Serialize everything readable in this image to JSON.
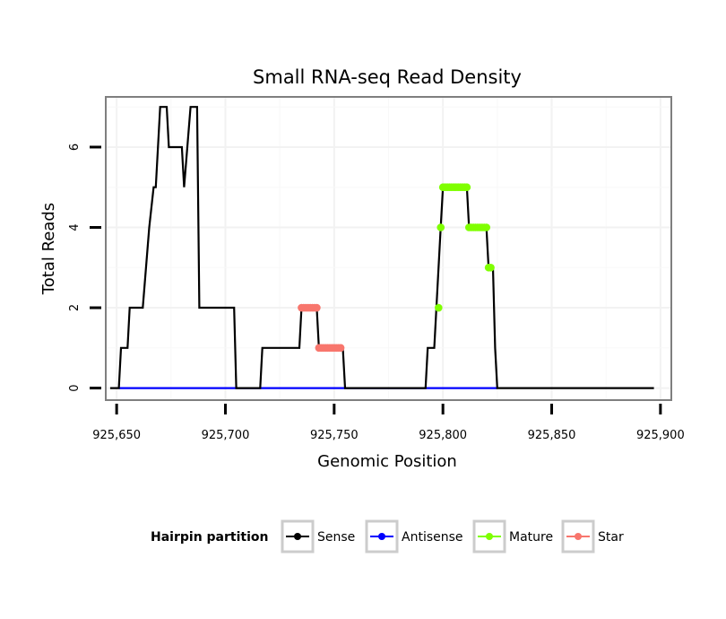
{
  "chart_data": {
    "type": "line",
    "title": "Small RNA-seq Read Density",
    "xlabel": "Genomic Position",
    "ylabel": "Total Reads",
    "xlim": [
      925645,
      925905
    ],
    "ylim": [
      -0.3,
      7.25
    ],
    "x_ticks": [
      925650,
      925700,
      925750,
      925800,
      925850,
      925900
    ],
    "x_tick_labels": [
      "925,650",
      "925,700",
      "925,750",
      "925,800",
      "925,850",
      "925,900"
    ],
    "y_ticks": [
      0,
      2,
      4,
      6
    ],
    "y_tick_labels": [
      "0",
      "2",
      "4",
      "6"
    ],
    "grid": true,
    "legend_title": "Hairpin partition",
    "legend_position": "bottom",
    "series": [
      {
        "name": "Sense",
        "color": "#000000",
        "style": "line",
        "points": [
          [
            925647,
            0
          ],
          [
            925651,
            0
          ],
          [
            925652,
            1
          ],
          [
            925655,
            1
          ],
          [
            925656,
            2
          ],
          [
            925662,
            2
          ],
          [
            925665,
            4
          ],
          [
            925667,
            5
          ],
          [
            925668,
            5
          ],
          [
            925670,
            7
          ],
          [
            925673,
            7
          ],
          [
            925674,
            6
          ],
          [
            925680,
            6
          ],
          [
            925681,
            5
          ],
          [
            925684,
            7
          ],
          [
            925687,
            7
          ],
          [
            925688,
            2
          ],
          [
            925704,
            2
          ],
          [
            925705,
            0
          ],
          [
            925716,
            0
          ],
          [
            925717,
            1
          ],
          [
            925734,
            1
          ],
          [
            925735,
            2
          ],
          [
            925742,
            2
          ],
          [
            925743,
            1
          ],
          [
            925754,
            1
          ],
          [
            925755,
            0
          ],
          [
            925792,
            0
          ],
          [
            925793,
            1
          ],
          [
            925796,
            1
          ],
          [
            925797,
            2
          ],
          [
            925799,
            4
          ],
          [
            925800,
            5
          ],
          [
            925811,
            5
          ],
          [
            925812,
            4
          ],
          [
            925820,
            4
          ],
          [
            925821,
            3
          ],
          [
            925823,
            3
          ],
          [
            925824,
            1
          ],
          [
            925825,
            0
          ],
          [
            925897,
            0
          ]
        ]
      },
      {
        "name": "Antisense",
        "color": "#0000ff",
        "style": "line",
        "points": [
          [
            925651,
            0
          ],
          [
            925825,
            0
          ]
        ]
      },
      {
        "name": "Mature",
        "color": "#7fff00",
        "style": "points",
        "points": [
          [
            925798,
            2
          ],
          [
            925799,
            4
          ],
          [
            925800,
            5
          ],
          [
            925801,
            5
          ],
          [
            925802,
            5
          ],
          [
            925803,
            5
          ],
          [
            925804,
            5
          ],
          [
            925805,
            5
          ],
          [
            925806,
            5
          ],
          [
            925807,
            5
          ],
          [
            925808,
            5
          ],
          [
            925809,
            5
          ],
          [
            925810,
            5
          ],
          [
            925811,
            5
          ],
          [
            925812,
            4
          ],
          [
            925813,
            4
          ],
          [
            925814,
            4
          ],
          [
            925815,
            4
          ],
          [
            925816,
            4
          ],
          [
            925817,
            4
          ],
          [
            925818,
            4
          ],
          [
            925819,
            4
          ],
          [
            925820,
            4
          ],
          [
            925821,
            3
          ],
          [
            925822,
            3
          ]
        ]
      },
      {
        "name": "Star",
        "color": "#f8766d",
        "style": "points",
        "points": [
          [
            925735,
            2
          ],
          [
            925736,
            2
          ],
          [
            925737,
            2
          ],
          [
            925738,
            2
          ],
          [
            925739,
            2
          ],
          [
            925740,
            2
          ],
          [
            925741,
            2
          ],
          [
            925742,
            2
          ],
          [
            925743,
            1
          ],
          [
            925744,
            1
          ],
          [
            925745,
            1
          ],
          [
            925746,
            1
          ],
          [
            925747,
            1
          ],
          [
            925748,
            1
          ],
          [
            925749,
            1
          ],
          [
            925750,
            1
          ],
          [
            925751,
            1
          ],
          [
            925752,
            1
          ],
          [
            925753,
            1
          ]
        ]
      }
    ]
  }
}
